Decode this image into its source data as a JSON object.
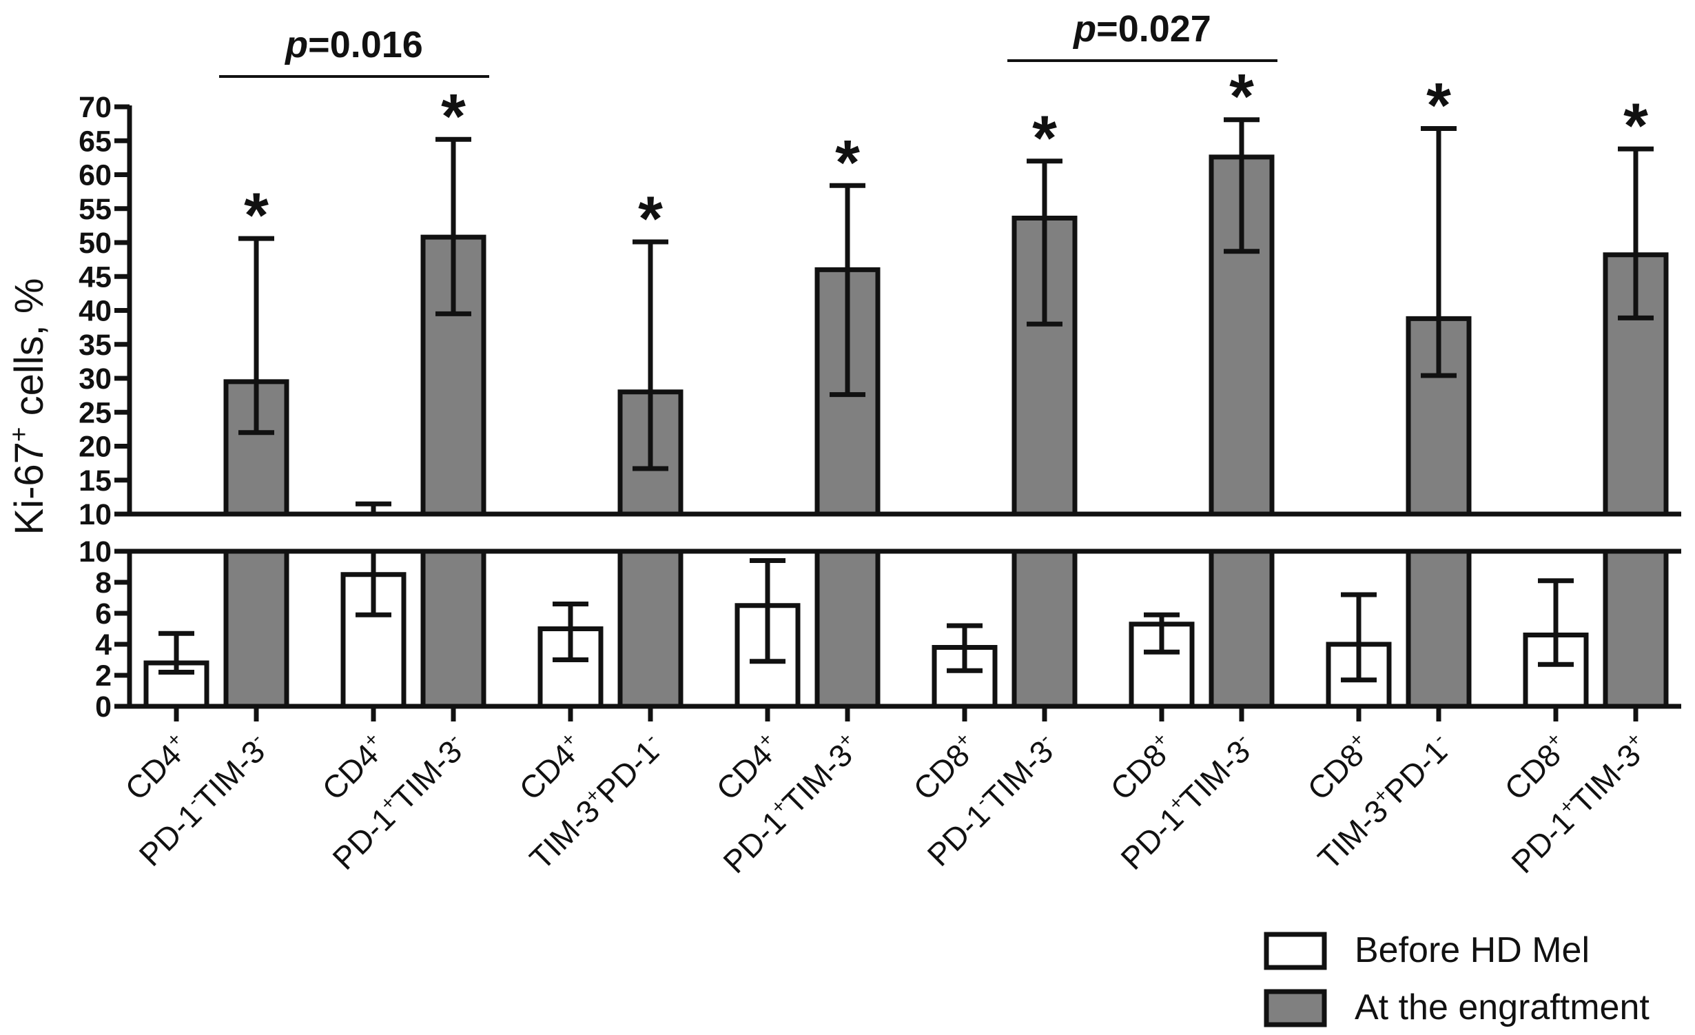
{
  "chart_data": {
    "type": "bar",
    "title": "",
    "xlabel": "",
    "ylabel": {
      "prefix": "Ki-67",
      "sup": "+",
      "suffix": " cells, %"
    },
    "axis_break": {
      "lower_range": [
        0,
        10
      ],
      "upper_range": [
        10,
        70
      ]
    },
    "lower_ticks": [
      "0",
      "2",
      "4",
      "6",
      "8",
      "10"
    ],
    "upper_ticks": [
      "10",
      "15",
      "20",
      "25",
      "30",
      "35",
      "40",
      "45",
      "50",
      "55",
      "60",
      "65",
      "70"
    ],
    "categories": [
      {
        "line1": [
          {
            "t": "CD4"
          },
          {
            "t": "+",
            "sup": true
          }
        ],
        "line2": [
          {
            "t": "PD-1"
          },
          {
            "t": "-",
            "sup": true
          },
          {
            "t": "TIM-3"
          },
          {
            "t": "-",
            "sup": true
          }
        ]
      },
      {
        "line1": [
          {
            "t": "CD4"
          },
          {
            "t": "+",
            "sup": true
          }
        ],
        "line2": [
          {
            "t": "PD-1"
          },
          {
            "t": "+",
            "sup": true
          },
          {
            "t": "TIM-3"
          },
          {
            "t": "-",
            "sup": true
          }
        ]
      },
      {
        "line1": [
          {
            "t": "CD4"
          },
          {
            "t": "+",
            "sup": true
          }
        ],
        "line2": [
          {
            "t": "TIM-3"
          },
          {
            "t": "+",
            "sup": true
          },
          {
            "t": "PD-1"
          },
          {
            "t": "-",
            "sup": true
          }
        ]
      },
      {
        "line1": [
          {
            "t": "CD4"
          },
          {
            "t": "+",
            "sup": true
          }
        ],
        "line2": [
          {
            "t": "PD-1"
          },
          {
            "t": "+",
            "sup": true
          },
          {
            "t": "TIM-3"
          },
          {
            "t": "+",
            "sup": true
          }
        ]
      },
      {
        "line1": [
          {
            "t": "CD8"
          },
          {
            "t": "+",
            "sup": true
          }
        ],
        "line2": [
          {
            "t": "PD-1"
          },
          {
            "t": "-",
            "sup": true
          },
          {
            "t": "TIM-3"
          },
          {
            "t": "-",
            "sup": true
          }
        ]
      },
      {
        "line1": [
          {
            "t": "CD8"
          },
          {
            "t": "+",
            "sup": true
          }
        ],
        "line2": [
          {
            "t": "PD-1"
          },
          {
            "t": "+",
            "sup": true
          },
          {
            "t": "TIM-3"
          },
          {
            "t": "-",
            "sup": true
          }
        ]
      },
      {
        "line1": [
          {
            "t": "CD8"
          },
          {
            "t": "+",
            "sup": true
          }
        ],
        "line2": [
          {
            "t": "TIM-3"
          },
          {
            "t": "+",
            "sup": true
          },
          {
            "t": "PD-1"
          },
          {
            "t": "-",
            "sup": true
          }
        ]
      },
      {
        "line1": [
          {
            "t": "CD8"
          },
          {
            "t": "+",
            "sup": true
          }
        ],
        "line2": [
          {
            "t": "PD-1"
          },
          {
            "t": "+",
            "sup": true
          },
          {
            "t": "TIM-3"
          },
          {
            "t": "+",
            "sup": true
          }
        ]
      }
    ],
    "series": [
      {
        "name": "Before HD Mel",
        "color": "#ffffff",
        "values": [
          2.8,
          8.5,
          5.0,
          6.5,
          3.8,
          5.3,
          4.0,
          4.6
        ],
        "err_low": [
          2.2,
          5.9,
          3.0,
          2.9,
          2.3,
          3.5,
          1.7,
          2.7
        ],
        "err_high": [
          4.7,
          11.5,
          6.6,
          9.4,
          5.2,
          5.9,
          7.2,
          8.1
        ]
      },
      {
        "name": "At the engraftment",
        "color": "#808080",
        "values": [
          29.5,
          50.8,
          28.0,
          46.0,
          53.6,
          62.6,
          38.8,
          48.2
        ],
        "err_low": [
          22.0,
          39.5,
          16.7,
          27.6,
          38.0,
          48.7,
          30.4,
          38.9
        ],
        "err_high": [
          50.6,
          65.2,
          50.1,
          58.4,
          62.0,
          68.1,
          66.8,
          63.8
        ],
        "markers": [
          "*",
          "*",
          "*",
          "*",
          "*",
          "*",
          "*",
          "*"
        ]
      }
    ],
    "comparisons": [
      {
        "p_label": "p",
        "p_value": "=0.016",
        "from": 0,
        "to": 1,
        "y": 74
      },
      {
        "p_label": "p",
        "p_value": "=0.027",
        "from": 4,
        "to": 5,
        "y": 77.5
      }
    ],
    "legend": {
      "position": "bottom-right",
      "entries": [
        "Before HD Mel",
        "At the engraftment"
      ]
    },
    "colors": {
      "axis": "#111111",
      "before": "#ffffff",
      "engraft": "#808080"
    }
  }
}
